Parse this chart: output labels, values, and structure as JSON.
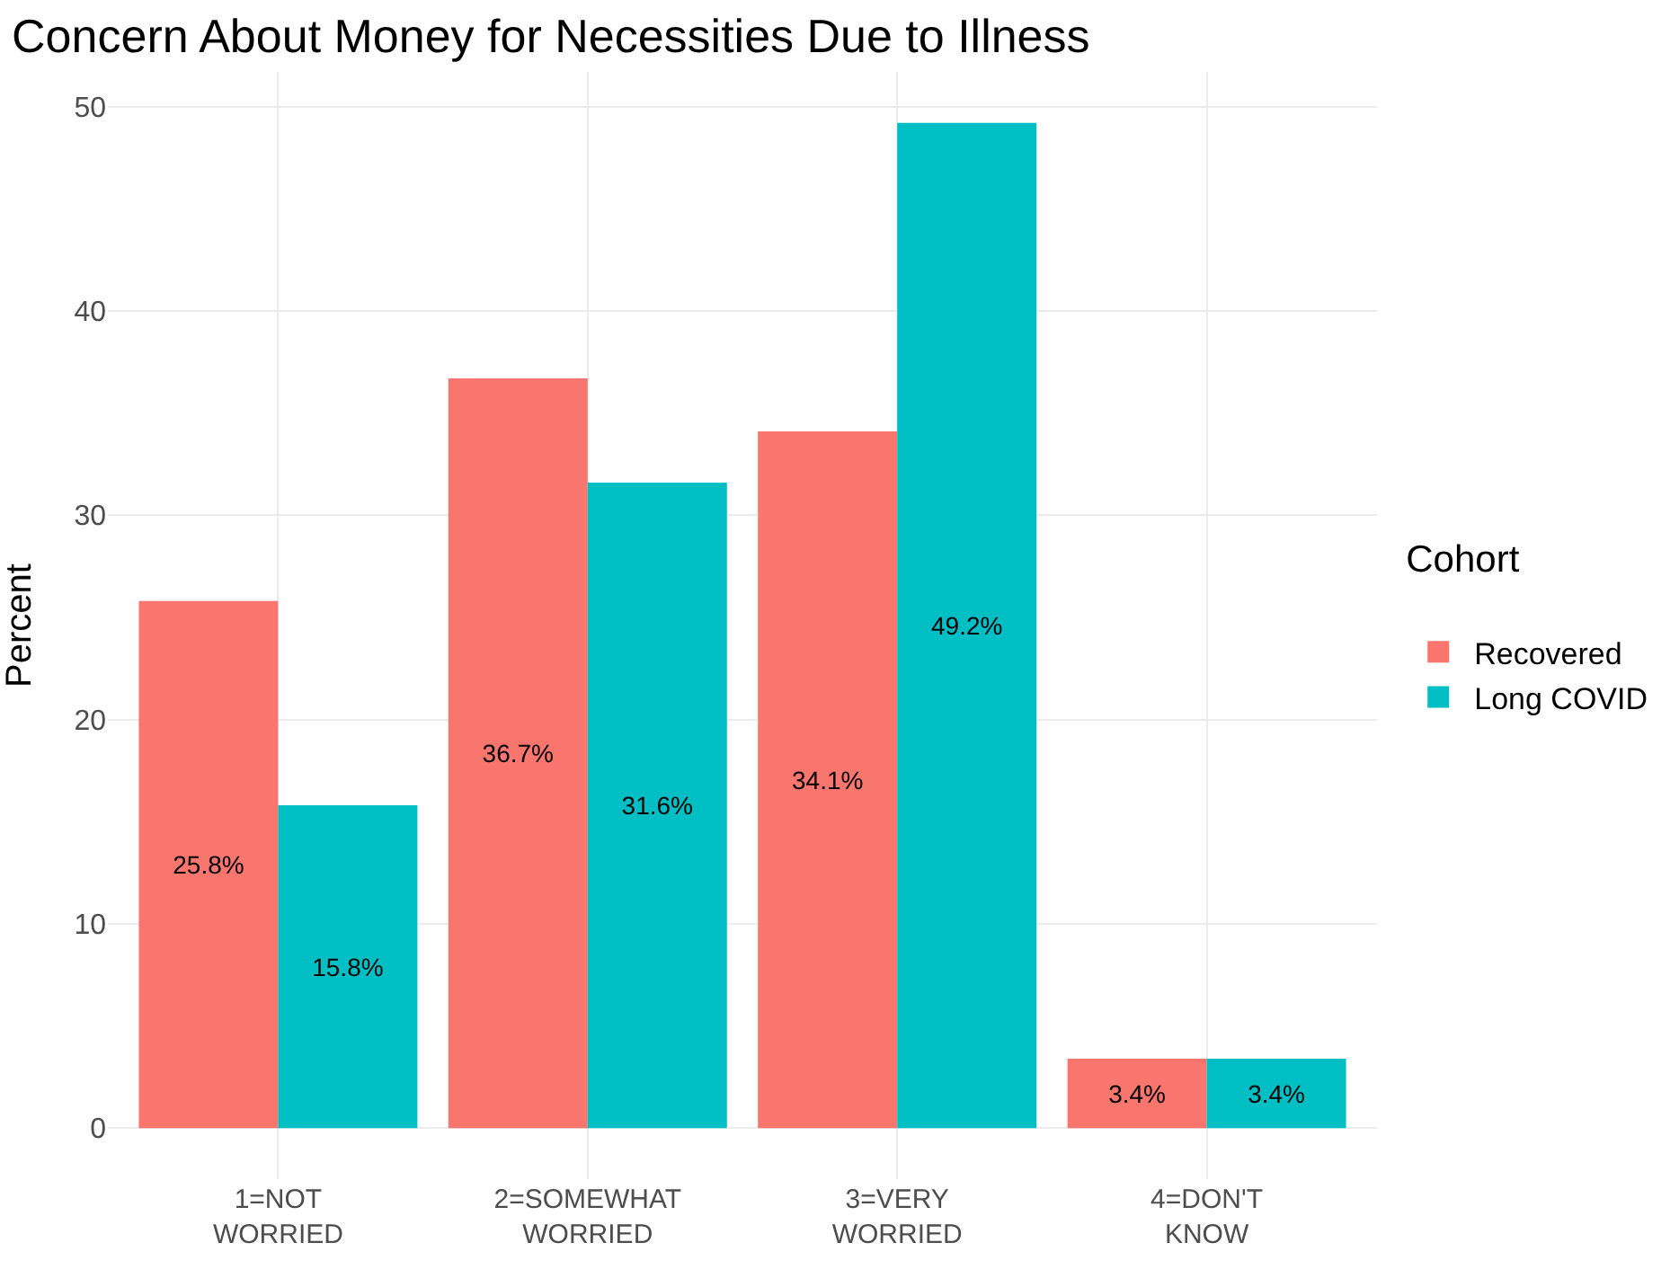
{
  "chart_data": {
    "type": "bar",
    "title": "Concern About Money for Necessities Due to Illness",
    "ylabel": "Percent",
    "legend_title": "Cohort",
    "categories": [
      "1=NOT WORRIED",
      "2=SOMEWHAT WORRIED",
      "3=VERY WORRIED",
      "4=DON'T KNOW"
    ],
    "series": [
      {
        "name": "Recovered",
        "color": "#f8766d",
        "values": [
          25.8,
          36.7,
          34.1,
          3.4
        ],
        "value_labels": [
          "25.8%",
          "36.7%",
          "34.1%",
          "3.4%"
        ]
      },
      {
        "name": "Long COVID",
        "color": "#00bfc4",
        "values": [
          15.8,
          31.6,
          49.2,
          3.4
        ],
        "value_labels": [
          "15.8%",
          "31.6%",
          "49.2%",
          "3.4%"
        ]
      }
    ],
    "ylim": [
      -2.5,
      51.7
    ],
    "yticks": [
      0,
      10,
      20,
      30,
      40,
      50
    ],
    "grid": true,
    "legend": "right"
  }
}
